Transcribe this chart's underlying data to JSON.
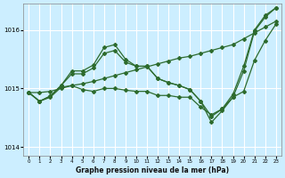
{
  "xlabel": "Graphe pression niveau de la mer (hPa)",
  "background_color": "#cceeff",
  "grid_color": "#ffffff",
  "line_color": "#2d6b2d",
  "ylim": [
    1013.85,
    1016.45
  ],
  "xlim": [
    -0.5,
    23.5
  ],
  "yticks": [
    1014,
    1015,
    1016
  ],
  "xticks": [
    0,
    1,
    2,
    3,
    4,
    5,
    6,
    7,
    8,
    9,
    10,
    11,
    12,
    13,
    14,
    15,
    16,
    17,
    18,
    19,
    20,
    21,
    22,
    23
  ],
  "lines": [
    {
      "x": [
        0,
        1,
        2,
        3,
        4,
        5,
        6,
        7,
        8,
        9,
        10,
        11,
        12,
        13,
        14,
        15,
        16,
        17,
        18,
        19,
        20,
        21,
        22,
        23
      ],
      "y": [
        1014.93,
        1014.93,
        1014.95,
        1015.0,
        1015.05,
        1015.08,
        1015.12,
        1015.17,
        1015.22,
        1015.27,
        1015.32,
        1015.37,
        1015.42,
        1015.47,
        1015.52,
        1015.55,
        1015.6,
        1015.65,
        1015.7,
        1015.75,
        1015.85,
        1015.95,
        1016.05,
        1016.15
      ],
      "marker": "D",
      "markersize": 2.0,
      "linewidth": 0.9
    },
    {
      "x": [
        0,
        1,
        2,
        3,
        4,
        5,
        6,
        7,
        8,
        9,
        10,
        11,
        12,
        13,
        14,
        15,
        16,
        17,
        18,
        19,
        20,
        21,
        22,
        23
      ],
      "y": [
        1014.93,
        1014.78,
        1014.87,
        1015.05,
        1015.25,
        1015.25,
        1015.35,
        1015.6,
        1015.65,
        1015.45,
        1015.38,
        1015.38,
        1015.17,
        1015.1,
        1015.05,
        1014.98,
        1014.78,
        1014.42,
        1014.62,
        1014.85,
        1015.3,
        1015.98,
        1016.22,
        1016.38
      ],
      "marker": "D",
      "markersize": 2.0,
      "linewidth": 0.9
    },
    {
      "x": [
        0,
        1,
        2,
        3,
        4,
        5,
        6,
        7,
        8,
        9,
        10,
        11,
        12,
        13,
        14,
        15,
        16,
        17,
        18,
        19,
        20,
        21,
        22,
        23
      ],
      "y": [
        1014.93,
        1014.78,
        1014.87,
        1015.05,
        1015.3,
        1015.3,
        1015.4,
        1015.7,
        1015.75,
        1015.5,
        1015.38,
        1015.38,
        1015.17,
        1015.1,
        1015.05,
        1014.98,
        1014.78,
        1014.52,
        1014.65,
        1014.9,
        1015.38,
        1016.0,
        1016.25,
        1016.38
      ],
      "marker": "D",
      "markersize": 2.0,
      "linewidth": 0.9
    },
    {
      "x": [
        0,
        1,
        2,
        3,
        4,
        5,
        6,
        7,
        8,
        9,
        10,
        11,
        12,
        13,
        14,
        15,
        16,
        17,
        18,
        19,
        20,
        21,
        22,
        23
      ],
      "y": [
        1014.93,
        1014.78,
        1014.85,
        1015.02,
        1015.05,
        1014.98,
        1014.95,
        1015.0,
        1015.0,
        1014.97,
        1014.95,
        1014.95,
        1014.88,
        1014.88,
        1014.85,
        1014.85,
        1014.68,
        1014.55,
        1014.65,
        1014.85,
        1014.95,
        1015.48,
        1015.82,
        1016.1
      ],
      "marker": "D",
      "markersize": 2.0,
      "linewidth": 0.9
    }
  ]
}
